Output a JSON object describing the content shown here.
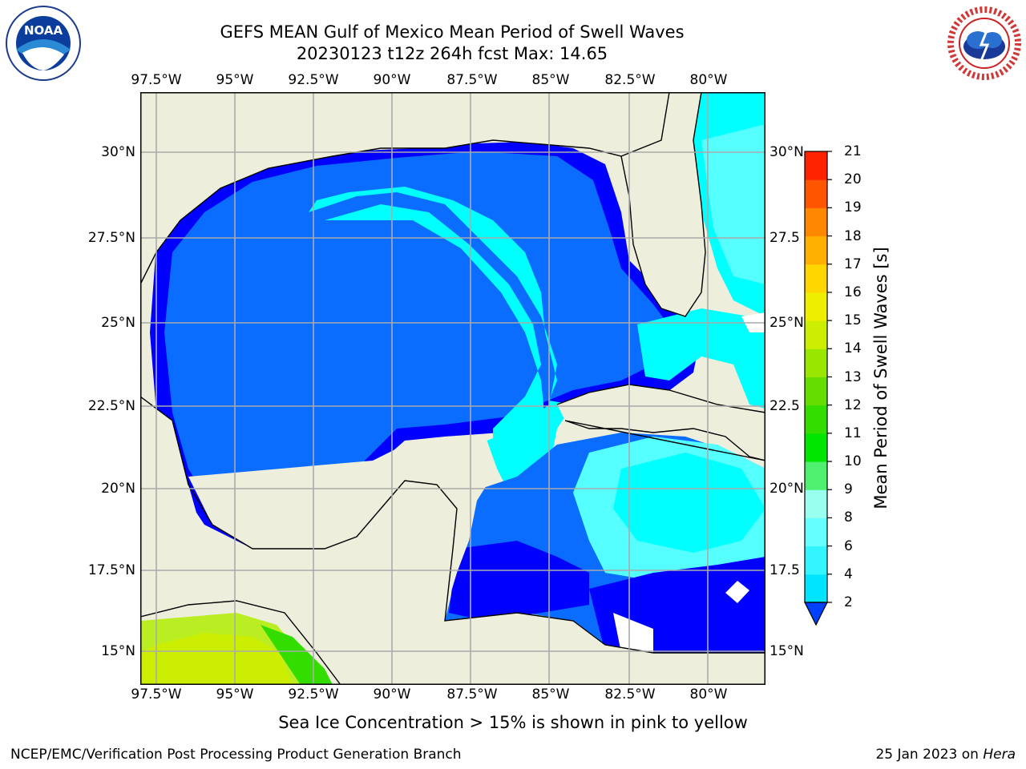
{
  "title": {
    "line1": "GEFS MEAN Gulf of Mexico Mean Period of Swell Waves",
    "line2": "20230123 t12z 264h fcst   Max: 14.65"
  },
  "logos": {
    "left": "NOAA",
    "right": "NATIONAL WEATHER SERVICE"
  },
  "lon_labels": [
    "97.5°W",
    "95°W",
    "92.5°W",
    "90°W",
    "87.5°W",
    "85°W",
    "82.5°W",
    "80°W"
  ],
  "lat_labels_left": [
    "30°N",
    "27.5°N",
    "25°N",
    "22.5°N",
    "20°N",
    "17.5°N",
    "15°N"
  ],
  "lat_labels_right": [
    "30°N",
    "27.5",
    "25°N",
    "22.5",
    "20°N",
    "17.5",
    "15°N"
  ],
  "colorbar": {
    "label": "Mean Period of Swell Waves [s]",
    "ticks": [
      "2",
      "4",
      "6",
      "8",
      "9",
      "10",
      "11",
      "12",
      "13",
      "14",
      "15",
      "16",
      "17",
      "18",
      "19",
      "20",
      "21"
    ],
    "colors": [
      "#0040ff",
      "#00e5ff",
      "#33f5ff",
      "#66ffff",
      "#99ffee",
      "#4ff06f",
      "#00e600",
      "#33dd00",
      "#66dd00",
      "#99e600",
      "#ccee00",
      "#eeee00",
      "#ffd700",
      "#ffb000",
      "#ff8800",
      "#ff5500",
      "#ff2200",
      "#ff0000"
    ]
  },
  "note": "Sea Ice Concentration > 15% is shown in pink to yellow",
  "footer": {
    "credit": "NCEP/EMC/Verification Post Processing Product Generation Branch",
    "date": "25 Jan 2023 on",
    "machine": "Hera"
  },
  "map": {
    "land_color": "#eeeedc",
    "water_classes": {
      "dark_blue": "#0000ff",
      "mid_blue": "#0a6dff",
      "cyan": "#00ffff",
      "light_cyan": "#55ffff"
    }
  }
}
